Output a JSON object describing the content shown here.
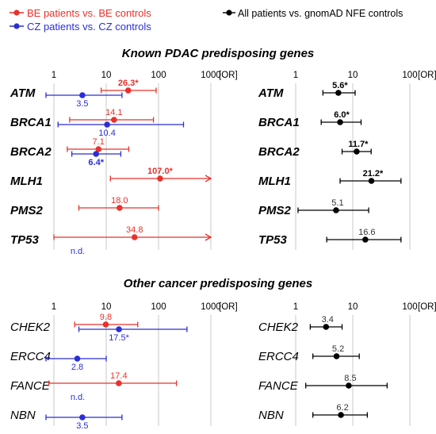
{
  "legend": {
    "be": "BE patients vs. BE controls",
    "cz": "CZ patients vs. CZ controls",
    "all": "All patients vs. gnomAD NFE controls"
  },
  "sections": [
    {
      "title": "Known PDAC predisposing genes"
    },
    {
      "title": "Other cancer predisposing genes"
    }
  ],
  "colors": {
    "be": "#e8312a",
    "cz": "#2a2fd4",
    "all": "#000000",
    "axis": "#222222",
    "grid": "#c8c8c8",
    "label": "#333333"
  },
  "chart_data": [
    {
      "type": "forest",
      "title": "Known PDAC predisposing genes",
      "panel": "country-specific",
      "xscale": "log",
      "xlim": [
        1,
        1000
      ],
      "ticks": [
        "1",
        "10",
        "100",
        "1000"
      ],
      "unit": "[OR]",
      "rows": [
        {
          "gene": "ATM",
          "be": {
            "or": 26.3,
            "lo": 8,
            "hi": 90,
            "label": "26.3*",
            "bold": true
          },
          "cz": {
            "or": 3.5,
            "lo": 0.6,
            "hi": 20,
            "label": "3.5",
            "bold": false
          }
        },
        {
          "gene": "BRCA1",
          "be": {
            "or": 14.1,
            "lo": 2,
            "hi": 80,
            "label": "14.1",
            "bold": false
          },
          "cz": {
            "or": 10.4,
            "lo": 1.2,
            "hi": 300,
            "label": "10.4",
            "bold": false
          }
        },
        {
          "gene": "BRCA2",
          "be": {
            "or": 7.1,
            "lo": 1.8,
            "hi": 27,
            "label": "7.1",
            "bold": false
          },
          "cz": {
            "or": 6.4,
            "lo": 2.2,
            "hi": 19,
            "label": "6.4*",
            "bold": true
          }
        },
        {
          "gene": "MLH1",
          "be": {
            "or": 107.0,
            "lo": 12,
            "hi": 1000,
            "arrow": true,
            "label": "107.0*",
            "bold": true
          },
          "cz": null
        },
        {
          "gene": "PMS2",
          "be": {
            "or": 18.0,
            "lo": 3,
            "hi": 100,
            "label": "18.0",
            "bold": false
          },
          "cz": null
        },
        {
          "gene": "TP53",
          "be": {
            "or": 34.8,
            "lo": 1,
            "hi": 1000,
            "arrow": true,
            "label": "34.8",
            "bold": false
          },
          "cz": {
            "nd": true,
            "label": "n.d."
          }
        }
      ]
    },
    {
      "type": "forest",
      "title": "Known PDAC predisposing genes",
      "panel": "all patients",
      "xscale": "log",
      "xlim": [
        1,
        100
      ],
      "ticks": [
        "1",
        "10",
        "100"
      ],
      "unit": "[OR]",
      "rows": [
        {
          "gene": "ATM",
          "all": {
            "or": 5.6,
            "lo": 3,
            "hi": 11,
            "label": "5.6*",
            "bold": true
          }
        },
        {
          "gene": "BRCA1",
          "all": {
            "or": 6.0,
            "lo": 2.8,
            "hi": 14,
            "label": "6.0*",
            "bold": true
          }
        },
        {
          "gene": "BRCA2",
          "all": {
            "or": 11.7,
            "lo": 6.5,
            "hi": 21,
            "label": "11.7*",
            "bold": true
          }
        },
        {
          "gene": "MLH1",
          "all": {
            "or": 21.2,
            "lo": 6,
            "hi": 70,
            "label": "21.2*",
            "bold": true
          }
        },
        {
          "gene": "PMS2",
          "all": {
            "or": 5.1,
            "lo": 1.1,
            "hi": 19,
            "label": "5.1",
            "bold": false
          }
        },
        {
          "gene": "TP53",
          "all": {
            "or": 16.6,
            "lo": 3.5,
            "hi": 70,
            "label": "16.6",
            "bold": false
          }
        }
      ]
    },
    {
      "type": "forest",
      "title": "Other cancer predisposing genes",
      "panel": "country-specific",
      "xscale": "log",
      "xlim": [
        1,
        1000
      ],
      "ticks": [
        "1",
        "10",
        "100",
        "1000"
      ],
      "unit": "[OR]",
      "rows": [
        {
          "gene": "CHEK2",
          "be": {
            "or": 9.8,
            "lo": 2.5,
            "hi": 40,
            "label": "9.8",
            "bold": false
          },
          "cz": {
            "or": 17.5,
            "lo": 3,
            "hi": 350,
            "label": "17.5*",
            "bold": false
          }
        },
        {
          "gene": "ERCC4",
          "be": null,
          "cz": {
            "or": 2.8,
            "lo": 0.6,
            "hi": 10,
            "label": "2.8",
            "bold": false
          }
        },
        {
          "gene": "FANCE",
          "be": {
            "or": 17.4,
            "lo": 0.8,
            "hi": 220,
            "label": "17.4",
            "bold": false
          },
          "cz": {
            "nd": true,
            "label": "n.d."
          }
        },
        {
          "gene": "NBN",
          "be": null,
          "cz": {
            "or": 3.5,
            "lo": 0.6,
            "hi": 20,
            "label": "3.5",
            "bold": false
          }
        }
      ]
    },
    {
      "type": "forest",
      "title": "Other cancer predisposing genes",
      "panel": "all patients",
      "xscale": "log",
      "xlim": [
        1,
        100
      ],
      "ticks": [
        "1",
        "10",
        "100"
      ],
      "unit": "[OR]",
      "rows": [
        {
          "gene": "CHEK2",
          "all": {
            "or": 3.4,
            "lo": 1.8,
            "hi": 6.5,
            "label": "3.4",
            "bold": false
          }
        },
        {
          "gene": "ERCC4",
          "all": {
            "or": 5.2,
            "lo": 2,
            "hi": 13,
            "label": "5.2",
            "bold": false
          }
        },
        {
          "gene": "FANCE",
          "all": {
            "or": 8.5,
            "lo": 1.5,
            "hi": 40,
            "label": "8.5",
            "bold": false
          }
        },
        {
          "gene": "NBN",
          "all": {
            "or": 6.2,
            "lo": 2,
            "hi": 18,
            "label": "6.2",
            "bold": false
          }
        }
      ]
    }
  ]
}
